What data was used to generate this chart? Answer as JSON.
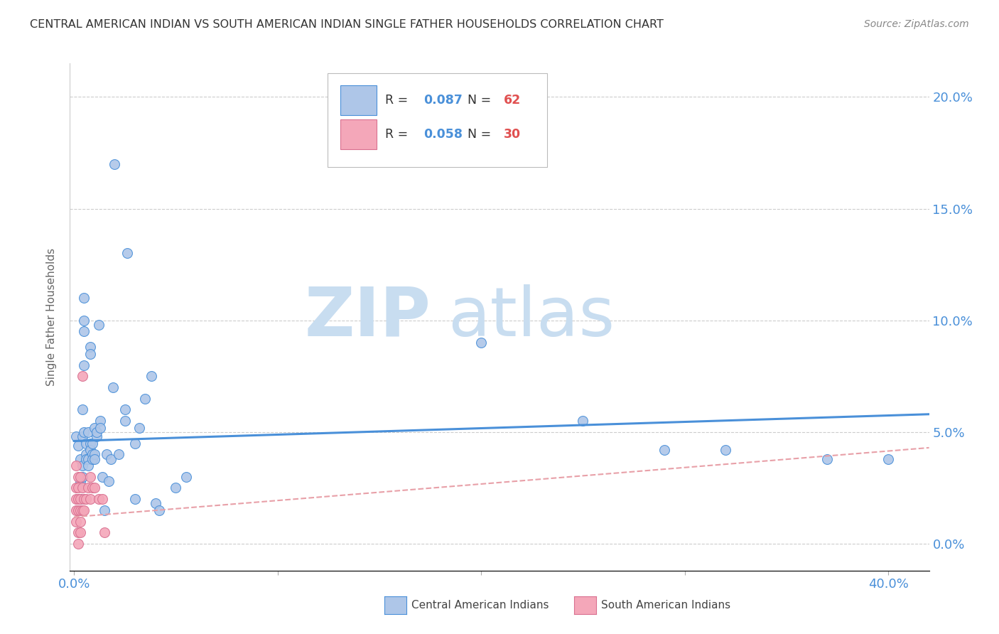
{
  "title": "CENTRAL AMERICAN INDIAN VS SOUTH AMERICAN INDIAN SINGLE FATHER HOUSEHOLDS CORRELATION CHART",
  "source": "Source: ZipAtlas.com",
  "ylabel": "Single Father Households",
  "yticks_right": [
    "0.0%",
    "5.0%",
    "10.0%",
    "15.0%",
    "20.0%"
  ],
  "ytick_vals": [
    0.0,
    0.05,
    0.1,
    0.15,
    0.2
  ],
  "watermark_zip": "ZIP",
  "watermark_atlas": "atlas",
  "blue_scatter": [
    [
      0.001,
      0.048
    ],
    [
      0.002,
      0.044
    ],
    [
      0.003,
      0.038
    ],
    [
      0.003,
      0.028
    ],
    [
      0.003,
      0.02
    ],
    [
      0.004,
      0.035
    ],
    [
      0.004,
      0.03
    ],
    [
      0.004,
      0.048
    ],
    [
      0.004,
      0.06
    ],
    [
      0.005,
      0.11
    ],
    [
      0.005,
      0.1
    ],
    [
      0.005,
      0.095
    ],
    [
      0.005,
      0.08
    ],
    [
      0.005,
      0.05
    ],
    [
      0.006,
      0.045
    ],
    [
      0.006,
      0.04
    ],
    [
      0.006,
      0.038
    ],
    [
      0.007,
      0.05
    ],
    [
      0.007,
      0.038
    ],
    [
      0.007,
      0.035
    ],
    [
      0.008,
      0.088
    ],
    [
      0.008,
      0.085
    ],
    [
      0.008,
      0.045
    ],
    [
      0.008,
      0.042
    ],
    [
      0.009,
      0.045
    ],
    [
      0.009,
      0.04
    ],
    [
      0.009,
      0.038
    ],
    [
      0.01,
      0.04
    ],
    [
      0.01,
      0.038
    ],
    [
      0.01,
      0.052
    ],
    [
      0.011,
      0.048
    ],
    [
      0.011,
      0.05
    ],
    [
      0.012,
      0.098
    ],
    [
      0.013,
      0.055
    ],
    [
      0.013,
      0.052
    ],
    [
      0.014,
      0.03
    ],
    [
      0.015,
      0.015
    ],
    [
      0.016,
      0.04
    ],
    [
      0.017,
      0.028
    ],
    [
      0.018,
      0.038
    ],
    [
      0.019,
      0.07
    ],
    [
      0.02,
      0.17
    ],
    [
      0.022,
      0.04
    ],
    [
      0.025,
      0.06
    ],
    [
      0.025,
      0.055
    ],
    [
      0.026,
      0.13
    ],
    [
      0.03,
      0.045
    ],
    [
      0.03,
      0.02
    ],
    [
      0.032,
      0.052
    ],
    [
      0.035,
      0.065
    ],
    [
      0.038,
      0.075
    ],
    [
      0.04,
      0.018
    ],
    [
      0.042,
      0.015
    ],
    [
      0.05,
      0.025
    ],
    [
      0.055,
      0.03
    ],
    [
      0.2,
      0.09
    ],
    [
      0.25,
      0.055
    ],
    [
      0.29,
      0.042
    ],
    [
      0.32,
      0.042
    ],
    [
      0.37,
      0.038
    ],
    [
      0.4,
      0.038
    ]
  ],
  "pink_scatter": [
    [
      0.001,
      0.035
    ],
    [
      0.001,
      0.025
    ],
    [
      0.001,
      0.02
    ],
    [
      0.001,
      0.015
    ],
    [
      0.001,
      0.01
    ],
    [
      0.002,
      0.03
    ],
    [
      0.002,
      0.025
    ],
    [
      0.002,
      0.02
    ],
    [
      0.002,
      0.015
    ],
    [
      0.002,
      0.005
    ],
    [
      0.002,
      0.0
    ],
    [
      0.003,
      0.03
    ],
    [
      0.003,
      0.02
    ],
    [
      0.003,
      0.015
    ],
    [
      0.003,
      0.01
    ],
    [
      0.003,
      0.005
    ],
    [
      0.004,
      0.075
    ],
    [
      0.004,
      0.025
    ],
    [
      0.004,
      0.015
    ],
    [
      0.005,
      0.02
    ],
    [
      0.005,
      0.015
    ],
    [
      0.006,
      0.02
    ],
    [
      0.007,
      0.025
    ],
    [
      0.008,
      0.03
    ],
    [
      0.008,
      0.02
    ],
    [
      0.009,
      0.025
    ],
    [
      0.01,
      0.025
    ],
    [
      0.012,
      0.02
    ],
    [
      0.014,
      0.02
    ],
    [
      0.015,
      0.005
    ]
  ],
  "blue_line_x": [
    0.0,
    0.42
  ],
  "blue_line_y": [
    0.046,
    0.058
  ],
  "pink_line_x": [
    0.0,
    0.42
  ],
  "pink_line_y": [
    0.012,
    0.043
  ],
  "xlim": [
    -0.002,
    0.42
  ],
  "ylim": [
    -0.012,
    0.215
  ],
  "bg_color": "#ffffff",
  "scatter_blue": "#aec6e8",
  "scatter_pink": "#f4a7b9",
  "line_blue": "#4a90d9",
  "line_pink": "#e8a0a8",
  "title_color": "#333333",
  "axis_color": "#4a90d9",
  "grid_color": "#cccccc",
  "legend_r_color": "#4a90d9",
  "legend_n_color": "#e05050"
}
